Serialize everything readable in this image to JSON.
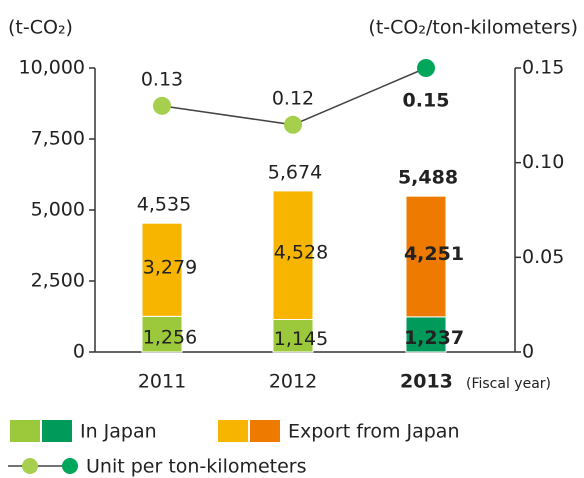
{
  "chart_data": {
    "type": "bar",
    "y_label": "(t-CO₂)",
    "y2_label": "(t-CO₂/ton-kilometers)",
    "x_note": "(Fiscal year)",
    "categories": [
      "2011",
      "2012",
      "2013"
    ],
    "highlight_index": 2,
    "series": [
      {
        "name": "In Japan",
        "color": "#9cc83c",
        "highlight_color": "#009a5b",
        "values": [
          1256,
          1145,
          1237
        ],
        "value_labels": [
          "1,256",
          "1,145",
          "1,237"
        ]
      },
      {
        "name": "Export from Japan",
        "color": "#f7b500",
        "highlight_color": "#ee7a00",
        "values": [
          3279,
          4528,
          4251
        ],
        "value_labels": [
          "3,279",
          "4,528",
          "4,251"
        ]
      },
      {
        "name": "Unit per ton-kilometers",
        "type": "line",
        "axis": "y2",
        "color": "#a6cf4e",
        "highlight_color": "#00a65a",
        "line_color": "#444",
        "values": [
          0.13,
          0.12,
          0.15
        ]
      }
    ],
    "total_labels": [
      "4,535",
      "5,674",
      "5,488"
    ],
    "ylim": [
      0,
      10000
    ],
    "yticks": [
      0,
      {
        "value": 2500,
        "label": "2,500"
      },
      {
        "value": 5000,
        "label": "5,000"
      },
      {
        "value": 7500,
        "label": "7,500"
      },
      {
        "value": 10000,
        "label": "10,000"
      }
    ],
    "y2lim": [
      0,
      0.15
    ],
    "y2ticks": [
      0,
      0.05,
      {
        "value": 0.1,
        "label": "0.10"
      },
      0.15
    ],
    "grid": false
  }
}
